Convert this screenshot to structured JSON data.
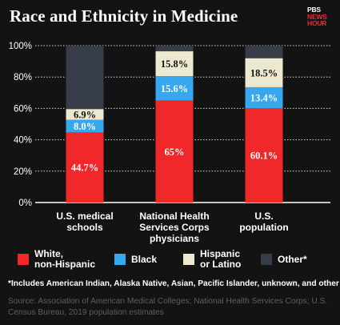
{
  "header": {
    "title": "Race and Ethnicity in Medicine",
    "logo": [
      "PBS",
      "NEWS",
      "HOUR"
    ]
  },
  "colors": {
    "background": "#131313",
    "white_non_hispanic": "#f0282a",
    "black": "#37a8f0",
    "hispanic_or_latino": "#ede8d0",
    "other": "#363c48",
    "gridline": "#ffffff",
    "axis_text": "#ffffff",
    "source_text": "#5e5e5e",
    "logo_accent": "#e8322b"
  },
  "chart_data": {
    "type": "bar",
    "stacked": true,
    "categories": [
      "U.S. medical\nschools",
      "National Health\nServices Corps\nphysicians",
      "U.S.\npopulation"
    ],
    "series": [
      {
        "name": "White,\nnon-Hispanic",
        "values": [
          44.7,
          65,
          60.1
        ],
        "labels": [
          "44.7%",
          "65%",
          "60.1%"
        ],
        "label_color": "#ffffff"
      },
      {
        "name": "Black",
        "values": [
          8.0,
          15.6,
          13.4
        ],
        "labels": [
          "8.0%",
          "15.6%",
          "13.4%"
        ],
        "label_color": "#ffffff"
      },
      {
        "name": "Hispanic\nor Latino",
        "values": [
          6.9,
          15.8,
          18.5
        ],
        "labels": [
          "6.9%",
          "15.8%",
          "18.5%"
        ],
        "label_color": "#111111"
      },
      {
        "name": "Other*",
        "values": [
          40.4,
          3.6,
          8.0
        ],
        "labels": [
          "",
          "",
          ""
        ],
        "label_color": "#ffffff"
      }
    ],
    "y_ticks": [
      "0%",
      "20%",
      "40%",
      "60%",
      "80%",
      "100%"
    ],
    "ylim": [
      0,
      100
    ],
    "grid": true,
    "legend_position": "bottom"
  },
  "footnote": "*Includes American Indian, Alaska Native, Asian, Pacific Islander, unknown, and other",
  "source": "Source:  Association of American Medical Colleges; National Health Services Corps; U.S. Census Bureau, 2019 population estimates"
}
